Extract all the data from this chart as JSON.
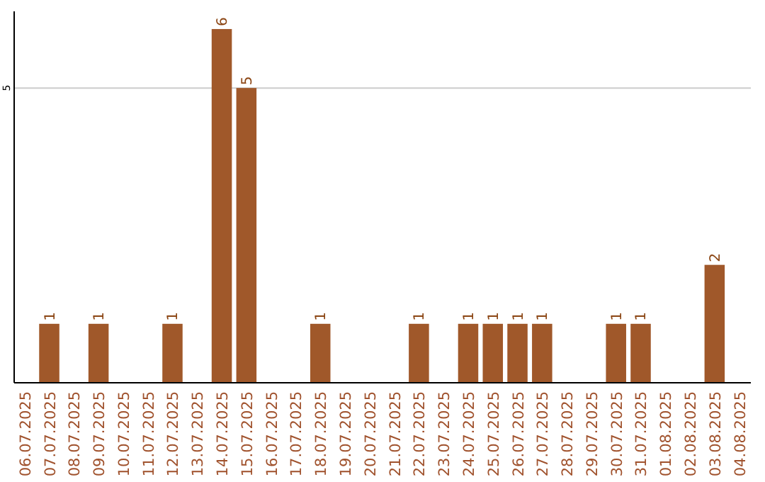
{
  "chart_data": {
    "type": "bar",
    "categories": [
      "06.07.2025",
      "07.07.2025",
      "08.07.2025",
      "09.07.2025",
      "10.07.2025",
      "11.07.2025",
      "12.07.2025",
      "13.07.2025",
      "14.07.2025",
      "15.07.2025",
      "16.07.2025",
      "17.07.2025",
      "18.07.2025",
      "19.07.2025",
      "20.07.2025",
      "21.07.2025",
      "22.07.2025",
      "23.07.2025",
      "24.07.2025",
      "25.07.2025",
      "26.07.2025",
      "27.07.2025",
      "28.07.2025",
      "29.07.2025",
      "30.07.2025",
      "31.07.2025",
      "01.08.2025",
      "02.08.2025",
      "03.08.2025",
      "04.08.2025"
    ],
    "values": [
      0,
      1,
      0,
      1,
      0,
      0,
      1,
      0,
      6,
      5,
      0,
      0,
      1,
      0,
      0,
      0,
      1,
      0,
      1,
      1,
      1,
      1,
      0,
      0,
      1,
      1,
      0,
      0,
      2,
      0
    ],
    "value_labels": [
      null,
      "1",
      null,
      "1",
      null,
      null,
      "1",
      null,
      "6",
      "5",
      null,
      null,
      "1",
      null,
      null,
      null,
      "1",
      null,
      "1",
      "1",
      "1",
      "1",
      null,
      null,
      "1",
      "1",
      null,
      null,
      "2",
      null
    ],
    "color": "#a0582a",
    "ylim": [
      0,
      6.3
    ],
    "yticks": [
      5
    ],
    "grid": "y"
  }
}
